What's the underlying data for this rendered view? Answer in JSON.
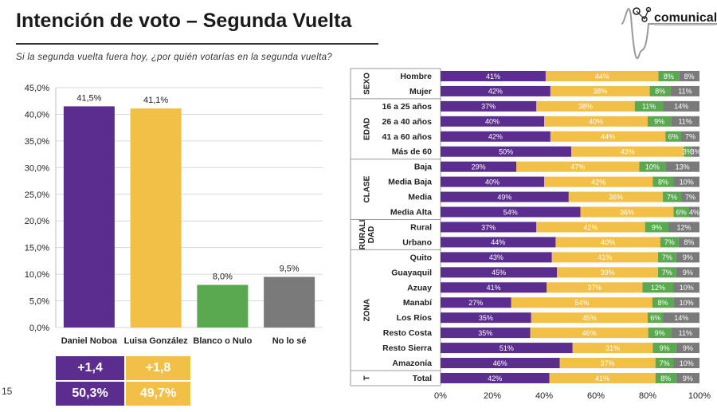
{
  "header": {
    "title": "Intención de voto – Segunda Vuelta",
    "subtitle": "Si la segunda vuelta fuera hoy, ¿por quién votarías en la segunda vuelta?",
    "page_number": "15",
    "logo_text": "comunicaliza"
  },
  "colors": {
    "purple": "#5b2d8e",
    "yellow": "#f2bf47",
    "green": "#5aa84f",
    "gray": "#7a7a7a"
  },
  "chart_data": [
    {
      "type": "bar",
      "categories": [
        "Daniel Noboa",
        "Luisa González",
        "Blanco o Nulo",
        "No lo sé"
      ],
      "values": [
        41.5,
        41.1,
        8.0,
        9.5
      ],
      "value_labels": [
        "41,5%",
        "41,1%",
        "8,0%",
        "9,5%"
      ],
      "y_ticks": [
        "0,0%",
        "5,0%",
        "10,0%",
        "15,0%",
        "20,0%",
        "25,0%",
        "30,0%",
        "35,0%",
        "40,0%",
        "45,0%"
      ],
      "ylim": [
        0,
        45
      ],
      "grid": true
    },
    {
      "type": "bar",
      "orientation": "horizontal-stacked-100",
      "series_names": [
        "Daniel Noboa",
        "Luisa González",
        "Blanco o Nulo",
        "No lo sé"
      ],
      "x_ticks": [
        "0%",
        "20%",
        "40%",
        "60%",
        "80%",
        "100%"
      ],
      "xlim": [
        0,
        100
      ],
      "groups": [
        {
          "label": "SEXO",
          "rows": [
            {
              "label": "Hombre",
              "values": [
                41,
                44,
                8,
                8
              ]
            },
            {
              "label": "Mujer",
              "values": [
                42,
                38,
                8,
                11
              ]
            }
          ]
        },
        {
          "label": "EDAD",
          "rows": [
            {
              "label": "16 a 25 años",
              "values": [
                37,
                38,
                11,
                14
              ]
            },
            {
              "label": "26 a 40 años",
              "values": [
                40,
                40,
                9,
                11
              ]
            },
            {
              "label": "41 a 60 años",
              "values": [
                42,
                44,
                6,
                7
              ]
            },
            {
              "label": "Más de 60",
              "values": [
                50,
                43,
                3,
                3
              ]
            }
          ]
        },
        {
          "label": "CLASE",
          "rows": [
            {
              "label": "Baja",
              "values": [
                29,
                47,
                10,
                13
              ]
            },
            {
              "label": "Media Baja",
              "values": [
                40,
                42,
                8,
                10
              ]
            },
            {
              "label": "Media",
              "values": [
                49,
                36,
                7,
                7
              ]
            },
            {
              "label": "Media Alta",
              "values": [
                54,
                36,
                6,
                4
              ]
            }
          ]
        },
        {
          "label": "RURALIDAD",
          "label_lines": [
            "RURALI",
            "DAD"
          ],
          "rows": [
            {
              "label": "Rural",
              "values": [
                37,
                42,
                9,
                12
              ]
            },
            {
              "label": "Urbano",
              "values": [
                44,
                40,
                7,
                8
              ]
            }
          ]
        },
        {
          "label": "ZONA",
          "rows": [
            {
              "label": "Quito",
              "values": [
                43,
                41,
                7,
                9
              ]
            },
            {
              "label": "Guayaquil",
              "values": [
                45,
                39,
                7,
                9
              ]
            },
            {
              "label": "Azuay",
              "values": [
                41,
                37,
                12,
                10
              ]
            },
            {
              "label": "Manabí",
              "values": [
                27,
                54,
                8,
                10
              ]
            },
            {
              "label": "Los Ríos",
              "values": [
                35,
                45,
                6,
                14
              ]
            },
            {
              "label": "Resto Costa",
              "values": [
                35,
                46,
                9,
                11
              ]
            },
            {
              "label": "Resto Sierra",
              "values": [
                51,
                31,
                9,
                9
              ]
            },
            {
              "label": "Amazonía",
              "values": [
                46,
                37,
                7,
                10
              ]
            }
          ]
        },
        {
          "label": "T",
          "rows": [
            {
              "label": "Total",
              "values": [
                42,
                41,
                8,
                9
              ]
            }
          ]
        }
      ]
    }
  ],
  "summary_boxes": {
    "noboa_diff": "+1,4",
    "gonzalez_diff": "+1,8",
    "noboa_valid": "50,3%",
    "gonzalez_valid": "49,7%"
  }
}
